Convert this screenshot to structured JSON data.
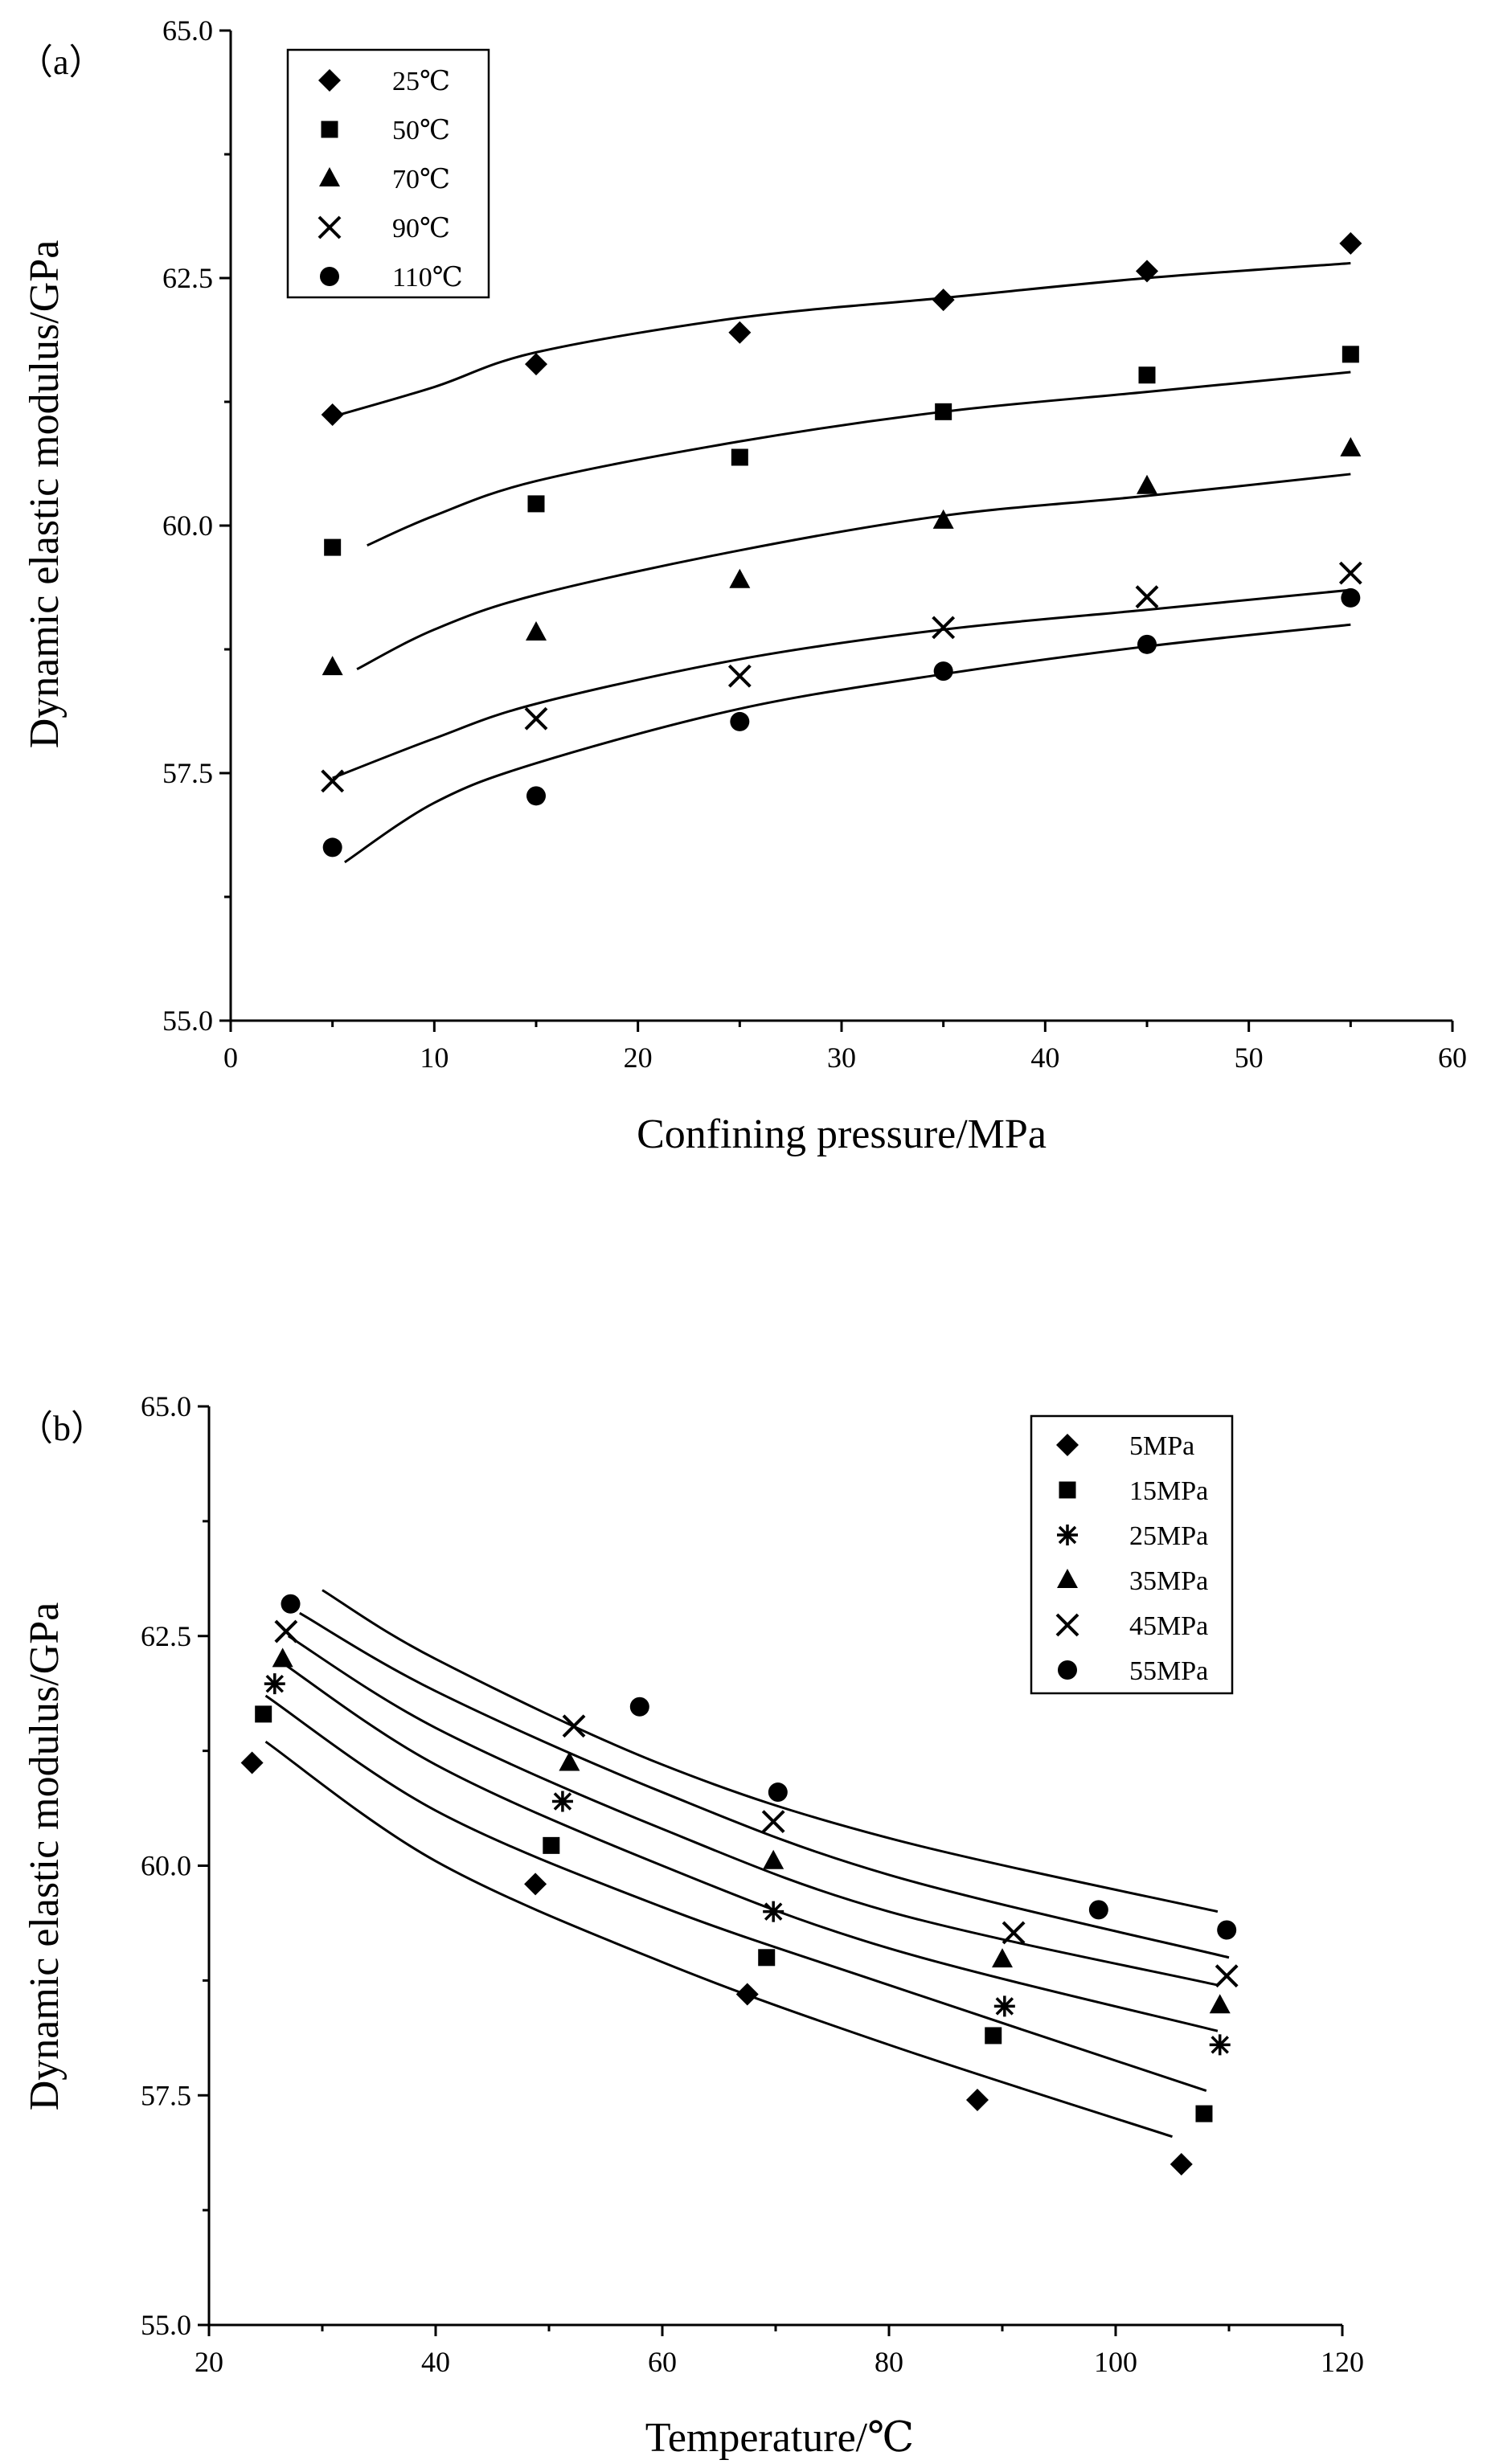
{
  "chart_data": [
    {
      "type": "scatter",
      "panel_label": "（a）",
      "title": "",
      "xlabel": "Confining pressure/MPa",
      "ylabel": "Dynamic elastic modulus/GPa",
      "xlim": [
        0,
        60
      ],
      "ylim": [
        55.0,
        65.0
      ],
      "xticks": [
        "0",
        "10",
        "20",
        "30",
        "40",
        "50",
        "60"
      ],
      "yticks": [
        "55.0",
        "57.5",
        "60.0",
        "62.5",
        "65.0"
      ],
      "legend_position": "top-left",
      "x": [
        5,
        15,
        25,
        35,
        45,
        55
      ],
      "series": [
        {
          "name": "25℃",
          "marker": "diamond",
          "values": [
            61.12,
            61.63,
            61.95,
            62.28,
            62.57,
            62.85
          ],
          "fit": [
            [
              5,
              61.1
            ],
            [
              10,
              61.4
            ],
            [
              15,
              61.75
            ],
            [
              25,
              62.1
            ],
            [
              35,
              62.3
            ],
            [
              45,
              62.5
            ],
            [
              55,
              62.65
            ]
          ]
        },
        {
          "name": "50℃",
          "marker": "square",
          "values": [
            59.78,
            60.22,
            60.69,
            61.15,
            61.52,
            61.73
          ],
          "fit": [
            [
              6.7,
              59.8
            ],
            [
              10,
              60.1
            ],
            [
              15,
              60.45
            ],
            [
              25,
              60.85
            ],
            [
              35,
              61.15
            ],
            [
              45,
              61.35
            ],
            [
              55,
              61.55
            ]
          ]
        },
        {
          "name": "70℃",
          "marker": "triangle",
          "values": [
            58.57,
            58.92,
            59.45,
            60.05,
            60.4,
            60.78
          ],
          "fit": [
            [
              6.2,
              58.55
            ],
            [
              10,
              58.95
            ],
            [
              15,
              59.3
            ],
            [
              25,
              59.75
            ],
            [
              35,
              60.1
            ],
            [
              45,
              60.3
            ],
            [
              55,
              60.52
            ]
          ]
        },
        {
          "name": "90℃",
          "marker": "x",
          "values": [
            57.42,
            58.05,
            58.48,
            58.97,
            59.28,
            59.52
          ],
          "fit": [
            [
              5,
              57.45
            ],
            [
              10,
              57.85
            ],
            [
              15,
              58.2
            ],
            [
              25,
              58.65
            ],
            [
              35,
              58.95
            ],
            [
              45,
              59.15
            ],
            [
              55,
              59.35
            ]
          ]
        },
        {
          "name": "110℃",
          "marker": "circle",
          "values": [
            56.75,
            57.27,
            58.02,
            58.53,
            58.8,
            59.27
          ],
          "fit": [
            [
              5.6,
              56.6
            ],
            [
              10,
              57.2
            ],
            [
              15,
              57.6
            ],
            [
              25,
              58.15
            ],
            [
              35,
              58.5
            ],
            [
              45,
              58.78
            ],
            [
              55,
              59.0
            ]
          ]
        }
      ]
    },
    {
      "type": "scatter",
      "panel_label": "（b）",
      "title": "",
      "xlabel": "Temperature/℃",
      "ylabel": "Dynamic elastic modulus/GPa",
      "xlim": [
        20,
        120
      ],
      "ylim": [
        55.0,
        65.0
      ],
      "xticks": [
        "20",
        "40",
        "60",
        "80",
        "100",
        "120"
      ],
      "yticks": [
        "55.0",
        "57.5",
        "60.0",
        "62.5",
        "65.0"
      ],
      "legend_position": "top-right",
      "series": [
        {
          "name": "5MPa",
          "marker": "diamond",
          "points": [
            [
              23.8,
              61.12
            ],
            [
              48.8,
              59.8
            ],
            [
              67.5,
              58.6
            ],
            [
              87.8,
              57.45
            ],
            [
              105.8,
              56.75
            ]
          ],
          "fit": [
            [
              25,
              61.35
            ],
            [
              40,
              60.05
            ],
            [
              60,
              58.95
            ],
            [
              80,
              58.05
            ],
            [
              105,
              57.05
            ]
          ]
        },
        {
          "name": "15MPa",
          "marker": "square",
          "points": [
            [
              24.8,
              61.65
            ],
            [
              50.2,
              60.22
            ],
            [
              69.2,
              59.0
            ],
            [
              89.2,
              58.15
            ],
            [
              107.8,
              57.3
            ]
          ],
          "fit": [
            [
              25,
              61.85
            ],
            [
              40,
              60.6
            ],
            [
              60,
              59.55
            ],
            [
              80,
              58.7
            ],
            [
              108,
              57.55
            ]
          ]
        },
        {
          "name": "25MPa",
          "marker": "asterisk",
          "points": [
            [
              25.8,
              61.98
            ],
            [
              51.2,
              60.7
            ],
            [
              69.8,
              59.5
            ],
            [
              90.2,
              58.47
            ],
            [
              109.2,
              58.05
            ]
          ],
          "fit": [
            [
              26,
              62.25
            ],
            [
              40,
              61.1
            ],
            [
              60,
              60.0
            ],
            [
              80,
              59.1
            ],
            [
              109,
              58.2
            ]
          ]
        },
        {
          "name": "35MPa",
          "marker": "triangle",
          "points": [
            [
              26.5,
              62.25
            ],
            [
              51.8,
              61.12
            ],
            [
              69.8,
              60.05
            ],
            [
              90.0,
              58.98
            ],
            [
              109.2,
              58.48
            ]
          ],
          "fit": [
            [
              27,
              62.5
            ],
            [
              40,
              61.5
            ],
            [
              60,
              60.4
            ],
            [
              80,
              59.5
            ],
            [
              109,
              58.7
            ]
          ]
        },
        {
          "name": "45MPa",
          "marker": "x",
          "points": [
            [
              26.8,
              62.55
            ],
            [
              52.2,
              61.52
            ],
            [
              69.8,
              60.48
            ],
            [
              91.0,
              59.27
            ],
            [
              109.8,
              58.8
            ]
          ],
          "fit": [
            [
              28,
              62.75
            ],
            [
              40,
              61.9
            ],
            [
              60,
              60.8
            ],
            [
              80,
              59.9
            ],
            [
              110,
              59.0
            ]
          ]
        },
        {
          "name": "55MPa",
          "marker": "circle",
          "points": [
            [
              27.2,
              62.85
            ],
            [
              58.0,
              61.73
            ],
            [
              70.2,
              60.8
            ],
            [
              98.5,
              59.52
            ],
            [
              109.8,
              59.3
            ]
          ],
          "fit": [
            [
              30,
              63.0
            ],
            [
              40,
              62.25
            ],
            [
              60,
              61.1
            ],
            [
              80,
              60.3
            ],
            [
              109,
              59.5
            ]
          ]
        }
      ]
    }
  ]
}
